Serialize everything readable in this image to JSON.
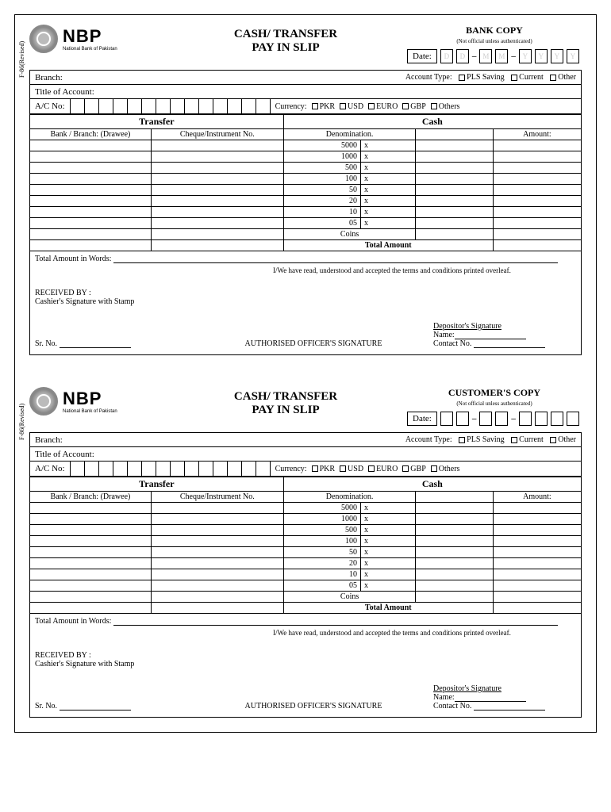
{
  "bank": {
    "abbr": "NBP",
    "full": "National Bank of Pakistan"
  },
  "title_line1": "CASH/ TRANSFER",
  "title_line2": "PAY IN SLIP",
  "form_code": "F-86(Revised)",
  "date_label": "Date:",
  "date_placeholders": [
    "D",
    "D",
    "M",
    "M",
    "Y",
    "Y",
    "Y",
    "Y"
  ],
  "labels": {
    "branch": "Branch:",
    "account_type": "Account Type:",
    "title_account": "Title of Account:",
    "ac_no": "A/C No:",
    "currency": "Currency:",
    "transfer": "Transfer",
    "cash": "Cash",
    "bank_branch": "Bank / Branch:  (Drawee)",
    "cheque_no": "Cheque/Instrument No.",
    "denomination": "Denomination.",
    "amount": "Amount:",
    "coins": "Coins",
    "total_amount": "Total Amount",
    "total_words": "Total Amount in Words:",
    "terms": "I/We have read, understood and accepted the terms and conditions printed overleaf.",
    "received_by": "RECEIVED BY :",
    "cashier_sig": "Cashier's Signature with Stamp",
    "sr_no": "Sr. No.",
    "auth_officer": "AUTHORISED OFFICER'S SIGNATURE",
    "depositor_sig": "Depositor's  Signature",
    "name": "Name:",
    "contact": "Contact No."
  },
  "account_types": [
    "PLS Saving",
    "Current",
    "Other"
  ],
  "currencies": [
    "PKR",
    "USD",
    "EURO",
    "GBP",
    "Others"
  ],
  "denominations": [
    "5000",
    "1000",
    "500",
    "100",
    "50",
    "20",
    "10",
    "05"
  ],
  "ac_cells": 14,
  "copies": [
    {
      "label": "BANK COPY",
      "sub": "(Not official unless authenticated)"
    },
    {
      "label": "CUSTOMER'S COPY",
      "sub": "(Not official unless authenticated)"
    }
  ]
}
